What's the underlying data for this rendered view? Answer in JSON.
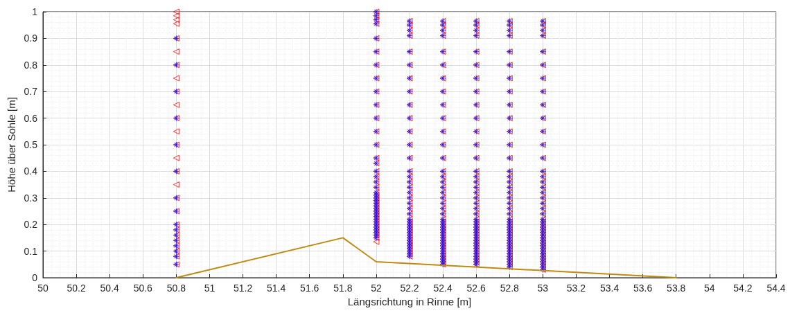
{
  "chart_data": {
    "type": "scatter",
    "xlabel": "Längsrichtung in Rinne [m]",
    "ylabel": "Höhe über Sohle [m]",
    "xlim": [
      50,
      54.4
    ],
    "xticks": [
      50,
      50.2,
      50.4,
      50.6,
      50.8,
      51,
      51.2,
      51.4,
      51.6,
      51.8,
      52,
      52.2,
      52.4,
      52.6,
      52.8,
      53,
      53.2,
      53.4,
      53.6,
      53.8,
      54,
      54.2,
      54.4
    ],
    "ylim": [
      0,
      1
    ],
    "yticks": [
      0,
      0.1,
      0.2,
      0.3,
      0.4,
      0.5,
      0.6,
      0.7,
      0.8,
      0.9,
      1
    ],
    "grid": true,
    "series": [
      {
        "marker": "triangle",
        "color": "#ff0000",
        "x": [
          50.8,
          50.8,
          50.8,
          50.8,
          50.8,
          50.8,
          50.8,
          50.8,
          50.8,
          50.8,
          50.8,
          50.8,
          50.8,
          50.8,
          50.8,
          50.8,
          50.8,
          50.8,
          50.8,
          50.8,
          50.8,
          50.8,
          50.8,
          50.8,
          50.8,
          50.8,
          52,
          52,
          52,
          52,
          52,
          52,
          52,
          52,
          52,
          52,
          52,
          52,
          52,
          52,
          52,
          52,
          52,
          52,
          52,
          52,
          52,
          52,
          52,
          52,
          52,
          52,
          52,
          52,
          52,
          52,
          52,
          52,
          52,
          52,
          52,
          52,
          52,
          52,
          52.2,
          52.2,
          52.2,
          52.2,
          52.2,
          52.2,
          52.2,
          52.2,
          52.2,
          52.2,
          52.2,
          52.2,
          52.2,
          52.2,
          52.2,
          52.2,
          52.2,
          52.2,
          52.2,
          52.2,
          52.2,
          52.2,
          52.2,
          52.2,
          52.2,
          52.2,
          52.2,
          52.2,
          52.2,
          52.2,
          52.2,
          52.2,
          52.2,
          52.2,
          52.2,
          52.2,
          52.2,
          52.4,
          52.4,
          52.4,
          52.4,
          52.4,
          52.4,
          52.4,
          52.4,
          52.4,
          52.4,
          52.4,
          52.4,
          52.4,
          52.4,
          52.4,
          52.4,
          52.4,
          52.4,
          52.4,
          52.4,
          52.4,
          52.4,
          52.4,
          52.4,
          52.4,
          52.4,
          52.4,
          52.4,
          52.4,
          52.4,
          52.4,
          52.4,
          52.4,
          52.4,
          52.4,
          52.4,
          52.4,
          52.4,
          52.4,
          52.4,
          52.6,
          52.6,
          52.6,
          52.6,
          52.6,
          52.6,
          52.6,
          52.6,
          52.6,
          52.6,
          52.6,
          52.6,
          52.6,
          52.6,
          52.6,
          52.6,
          52.6,
          52.6,
          52.6,
          52.6,
          52.6,
          52.6,
          52.6,
          52.6,
          52.6,
          52.6,
          52.6,
          52.6,
          52.6,
          52.6,
          52.6,
          52.6,
          52.6,
          52.6,
          52.6,
          52.6,
          52.6,
          52.6,
          52.6,
          52.6,
          52.8,
          52.8,
          52.8,
          52.8,
          52.8,
          52.8,
          52.8,
          52.8,
          52.8,
          52.8,
          52.8,
          52.8,
          52.8,
          52.8,
          52.8,
          52.8,
          52.8,
          52.8,
          52.8,
          52.8,
          52.8,
          52.8,
          52.8,
          52.8,
          52.8,
          52.8,
          52.8,
          52.8,
          52.8,
          52.8,
          52.8,
          52.8,
          52.8,
          52.8,
          52.8,
          52.8,
          52.8,
          52.8,
          52.8,
          52.8,
          52.8,
          53,
          53,
          53,
          53,
          53,
          53,
          53,
          53,
          53,
          53,
          53,
          53,
          53,
          53,
          53,
          53,
          53,
          53,
          53,
          53,
          53,
          53,
          53,
          53,
          53,
          53,
          53,
          53,
          53,
          53,
          53,
          53,
          53,
          53,
          53,
          53,
          53,
          53,
          53,
          53,
          53,
          53
        ],
        "values": [
          0.9,
          0.8,
          0.7,
          0.6,
          0.5,
          0.4,
          0.3,
          0.25,
          0.2,
          0.18,
          0.16,
          0.14,
          0.12,
          0.1,
          0.08,
          0.05,
          1,
          0.985,
          0.97,
          0.955,
          0.85,
          0.75,
          0.65,
          0.55,
          0.45,
          0.35,
          1,
          0.985,
          0.97,
          0.955,
          0.9,
          0.85,
          0.8,
          0.75,
          0.7,
          0.65,
          0.6,
          0.55,
          0.5,
          0.45,
          0.43,
          0.4,
          0.38,
          0.36,
          0.34,
          0.32,
          0.31,
          0.3,
          0.29,
          0.28,
          0.27,
          0.26,
          0.25,
          0.24,
          0.23,
          0.22,
          0.21,
          0.2,
          0.19,
          0.18,
          0.17,
          0.16,
          0.15,
          0.135,
          0.965,
          0.95,
          0.93,
          0.91,
          0.85,
          0.8,
          0.75,
          0.7,
          0.65,
          0.6,
          0.55,
          0.5,
          0.45,
          0.4,
          0.38,
          0.36,
          0.34,
          0.32,
          0.3,
          0.28,
          0.26,
          0.24,
          0.22,
          0.21,
          0.2,
          0.19,
          0.18,
          0.17,
          0.16,
          0.15,
          0.14,
          0.13,
          0.12,
          0.11,
          0.1,
          0.09,
          0.08,
          0.965,
          0.95,
          0.93,
          0.91,
          0.85,
          0.8,
          0.75,
          0.7,
          0.65,
          0.6,
          0.55,
          0.5,
          0.45,
          0.4,
          0.38,
          0.36,
          0.34,
          0.32,
          0.3,
          0.28,
          0.26,
          0.24,
          0.22,
          0.21,
          0.2,
          0.19,
          0.18,
          0.17,
          0.16,
          0.15,
          0.14,
          0.13,
          0.12,
          0.11,
          0.1,
          0.09,
          0.08,
          0.07,
          0.06,
          0.05,
          0.965,
          0.95,
          0.93,
          0.91,
          0.85,
          0.8,
          0.75,
          0.7,
          0.65,
          0.6,
          0.55,
          0.5,
          0.45,
          0.4,
          0.38,
          0.36,
          0.34,
          0.32,
          0.3,
          0.28,
          0.26,
          0.24,
          0.22,
          0.21,
          0.2,
          0.19,
          0.18,
          0.17,
          0.16,
          0.15,
          0.14,
          0.13,
          0.12,
          0.11,
          0.1,
          0.09,
          0.08,
          0.07,
          0.06,
          0.05,
          0.965,
          0.95,
          0.93,
          0.91,
          0.85,
          0.8,
          0.75,
          0.7,
          0.65,
          0.6,
          0.55,
          0.5,
          0.45,
          0.4,
          0.38,
          0.36,
          0.34,
          0.32,
          0.3,
          0.28,
          0.26,
          0.24,
          0.22,
          0.21,
          0.2,
          0.19,
          0.18,
          0.17,
          0.16,
          0.15,
          0.14,
          0.13,
          0.12,
          0.11,
          0.1,
          0.09,
          0.08,
          0.07,
          0.06,
          0.05,
          0.04,
          0.965,
          0.95,
          0.93,
          0.91,
          0.85,
          0.8,
          0.75,
          0.7,
          0.65,
          0.6,
          0.55,
          0.5,
          0.45,
          0.4,
          0.38,
          0.36,
          0.34,
          0.32,
          0.3,
          0.28,
          0.26,
          0.24,
          0.22,
          0.21,
          0.2,
          0.19,
          0.18,
          0.17,
          0.16,
          0.15,
          0.14,
          0.13,
          0.12,
          0.11,
          0.1,
          0.09,
          0.08,
          0.07,
          0.06,
          0.05,
          0.04,
          0.03
        ]
      },
      {
        "marker": "cross",
        "color": "#0000ff",
        "x": [
          50.8,
          50.8,
          50.8,
          50.8,
          50.8,
          50.8,
          50.8,
          50.8,
          50.8,
          50.8,
          50.8,
          50.8,
          50.8,
          50.8,
          50.8,
          50.8,
          52,
          52,
          52,
          52,
          52,
          52,
          52,
          52,
          52,
          52,
          52,
          52,
          52,
          52,
          52,
          52,
          52,
          52,
          52,
          52,
          52,
          52,
          52,
          52,
          52,
          52,
          52,
          52,
          52,
          52,
          52,
          52,
          52,
          52,
          52,
          52,
          52,
          52.2,
          52.2,
          52.2,
          52.2,
          52.2,
          52.2,
          52.2,
          52.2,
          52.2,
          52.2,
          52.2,
          52.2,
          52.2,
          52.2,
          52.2,
          52.2,
          52.2,
          52.2,
          52.2,
          52.2,
          52.2,
          52.2,
          52.2,
          52.2,
          52.2,
          52.2,
          52.2,
          52.2,
          52.2,
          52.2,
          52.2,
          52.2,
          52.2,
          52.2,
          52.2,
          52.2,
          52.2,
          52.4,
          52.4,
          52.4,
          52.4,
          52.4,
          52.4,
          52.4,
          52.4,
          52.4,
          52.4,
          52.4,
          52.4,
          52.4,
          52.4,
          52.4,
          52.4,
          52.4,
          52.4,
          52.4,
          52.4,
          52.4,
          52.4,
          52.4,
          52.4,
          52.4,
          52.4,
          52.4,
          52.4,
          52.4,
          52.4,
          52.4,
          52.4,
          52.4,
          52.4,
          52.4,
          52.4,
          52.4,
          52.4,
          52.4,
          52.4,
          52.6,
          52.6,
          52.6,
          52.6,
          52.6,
          52.6,
          52.6,
          52.6,
          52.6,
          52.6,
          52.6,
          52.6,
          52.6,
          52.6,
          52.6,
          52.6,
          52.6,
          52.6,
          52.6,
          52.6,
          52.6,
          52.6,
          52.6,
          52.6,
          52.6,
          52.6,
          52.6,
          52.6,
          52.6,
          52.6,
          52.6,
          52.6,
          52.6,
          52.6,
          52.6,
          52.6,
          52.6,
          52.6,
          52.6,
          52.6,
          52.8,
          52.8,
          52.8,
          52.8,
          52.8,
          52.8,
          52.8,
          52.8,
          52.8,
          52.8,
          52.8,
          52.8,
          52.8,
          52.8,
          52.8,
          52.8,
          52.8,
          52.8,
          52.8,
          52.8,
          52.8,
          52.8,
          52.8,
          52.8,
          52.8,
          52.8,
          52.8,
          52.8,
          52.8,
          52.8,
          52.8,
          52.8,
          52.8,
          52.8,
          52.8,
          52.8,
          52.8,
          52.8,
          52.8,
          52.8,
          52.8,
          53,
          53,
          53,
          53,
          53,
          53,
          53,
          53,
          53,
          53,
          53,
          53,
          53,
          53,
          53,
          53,
          53,
          53,
          53,
          53,
          53,
          53,
          53,
          53,
          53,
          53,
          53,
          53,
          53,
          53,
          53,
          53,
          53,
          53,
          53,
          53,
          53,
          53,
          53,
          53,
          53,
          53
        ],
        "values": [
          0.9,
          0.8,
          0.7,
          0.6,
          0.5,
          0.4,
          0.3,
          0.25,
          0.2,
          0.18,
          0.16,
          0.14,
          0.12,
          0.1,
          0.08,
          0.05,
          1,
          0.985,
          0.97,
          0.955,
          0.9,
          0.85,
          0.8,
          0.75,
          0.7,
          0.65,
          0.6,
          0.55,
          0.5,
          0.45,
          0.43,
          0.4,
          0.38,
          0.36,
          0.34,
          0.32,
          0.31,
          0.3,
          0.29,
          0.28,
          0.27,
          0.26,
          0.25,
          0.24,
          0.23,
          0.22,
          0.21,
          0.2,
          0.19,
          0.18,
          0.17,
          0.16,
          0.15,
          0.965,
          0.95,
          0.93,
          0.91,
          0.85,
          0.8,
          0.75,
          0.7,
          0.65,
          0.6,
          0.55,
          0.5,
          0.45,
          0.4,
          0.38,
          0.36,
          0.34,
          0.32,
          0.3,
          0.28,
          0.26,
          0.24,
          0.22,
          0.21,
          0.2,
          0.19,
          0.18,
          0.17,
          0.16,
          0.15,
          0.14,
          0.13,
          0.12,
          0.11,
          0.1,
          0.09,
          0.08,
          0.965,
          0.95,
          0.93,
          0.91,
          0.85,
          0.8,
          0.75,
          0.7,
          0.65,
          0.6,
          0.55,
          0.5,
          0.45,
          0.4,
          0.38,
          0.36,
          0.34,
          0.32,
          0.3,
          0.28,
          0.26,
          0.24,
          0.22,
          0.21,
          0.2,
          0.19,
          0.18,
          0.17,
          0.16,
          0.15,
          0.14,
          0.13,
          0.12,
          0.11,
          0.1,
          0.09,
          0.08,
          0.07,
          0.06,
          0.05,
          0.965,
          0.95,
          0.93,
          0.91,
          0.85,
          0.8,
          0.75,
          0.7,
          0.65,
          0.6,
          0.55,
          0.5,
          0.45,
          0.4,
          0.38,
          0.36,
          0.34,
          0.32,
          0.3,
          0.28,
          0.26,
          0.24,
          0.22,
          0.21,
          0.2,
          0.19,
          0.18,
          0.17,
          0.16,
          0.15,
          0.14,
          0.13,
          0.12,
          0.11,
          0.1,
          0.09,
          0.08,
          0.07,
          0.06,
          0.05,
          0.965,
          0.95,
          0.93,
          0.91,
          0.85,
          0.8,
          0.75,
          0.7,
          0.65,
          0.6,
          0.55,
          0.5,
          0.45,
          0.4,
          0.38,
          0.36,
          0.34,
          0.32,
          0.3,
          0.28,
          0.26,
          0.24,
          0.22,
          0.21,
          0.2,
          0.19,
          0.18,
          0.17,
          0.16,
          0.15,
          0.14,
          0.13,
          0.12,
          0.11,
          0.1,
          0.09,
          0.08,
          0.07,
          0.06,
          0.05,
          0.04,
          0.965,
          0.95,
          0.93,
          0.91,
          0.85,
          0.8,
          0.75,
          0.7,
          0.65,
          0.6,
          0.55,
          0.5,
          0.45,
          0.4,
          0.38,
          0.36,
          0.34,
          0.32,
          0.3,
          0.28,
          0.26,
          0.24,
          0.22,
          0.21,
          0.2,
          0.19,
          0.18,
          0.17,
          0.16,
          0.15,
          0.14,
          0.13,
          0.12,
          0.11,
          0.1,
          0.09,
          0.08,
          0.07,
          0.06,
          0.05,
          0.04,
          0.03
        ]
      },
      {
        "type": "line",
        "marker": "none",
        "line_style": "solid",
        "color": "#bf8a10",
        "x": [
          50.8,
          51.8,
          52,
          53.8
        ],
        "values": [
          0,
          0.15,
          0.06,
          0
        ]
      }
    ]
  }
}
